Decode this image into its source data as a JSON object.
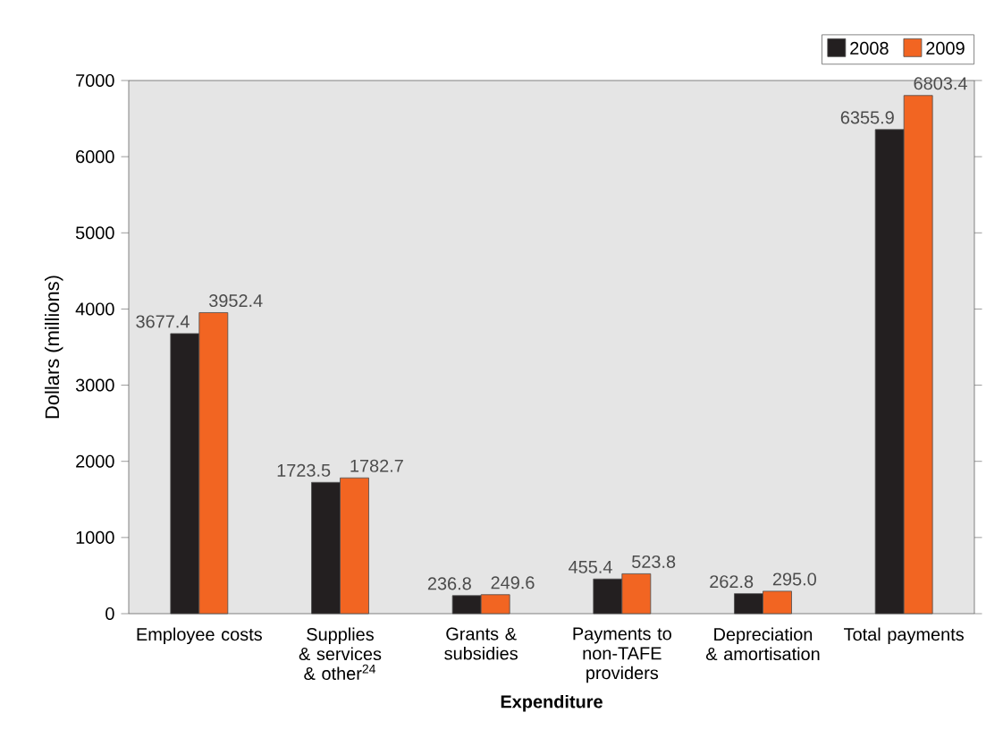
{
  "chart_data": {
    "type": "bar",
    "xlabel": "Expenditure",
    "ylabel": "Dollars (millions)",
    "categories": [
      "Employee costs",
      "Supplies & services & other$^{24}$",
      "Grants & subsidies",
      "Payments to non-TAFE providers",
      "Depreciation & amortisation",
      "Total payments"
    ],
    "series": [
      {
        "name": "2008",
        "color": "#231f20",
        "values": [
          3677.4,
          1723.5,
          236.8,
          455.4,
          262.8,
          6355.9
        ],
        "value_labels": [
          "3677.4",
          "1723.5",
          "236.8",
          "455.4",
          "262.8",
          "6355.9"
        ]
      },
      {
        "name": "2009",
        "color": "#f26522",
        "values": [
          3952.4,
          1782.7,
          249.6,
          523.8,
          295.0,
          6803.4
        ],
        "value_labels": [
          "3952.4",
          "1782.7",
          "249.6",
          "523.8",
          "295.0",
          "6803.4"
        ]
      }
    ],
    "ylim": [
      0,
      7000
    ],
    "yticks": [
      0,
      1000,
      2000,
      3000,
      4000,
      5000,
      6000,
      7000
    ],
    "grid": false,
    "legend": "top right"
  }
}
